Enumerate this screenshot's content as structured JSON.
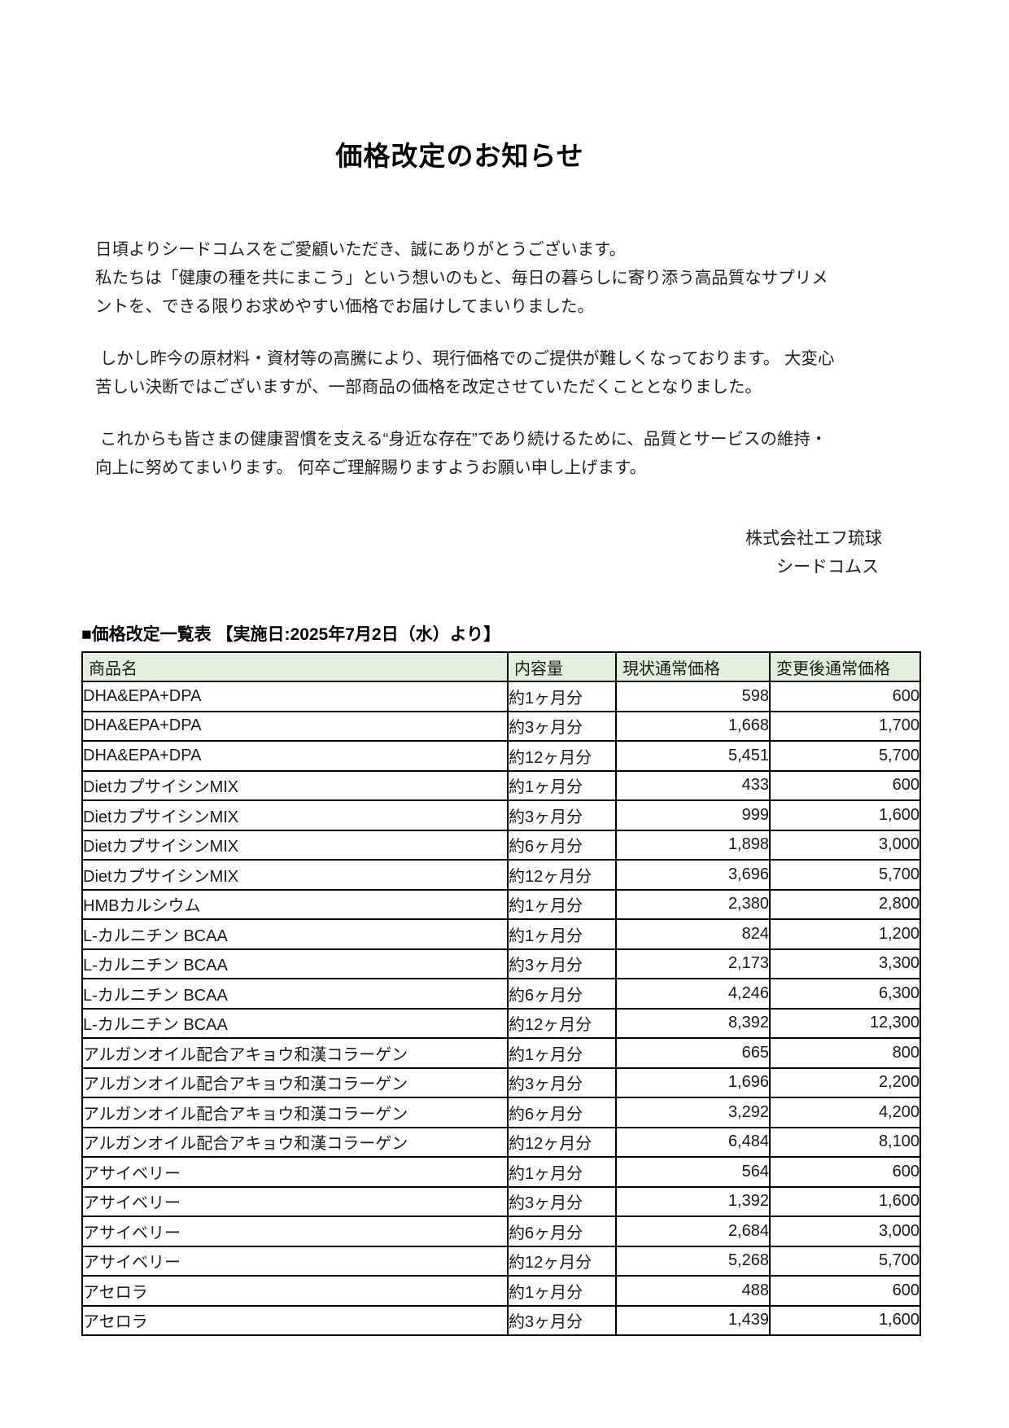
{
  "title": "価格改定のお知らせ",
  "body": {
    "paragraphs": [
      {
        "lines": [
          "日頃よりシードコムスをご愛顧いただき、誠にありがとうございます。",
          "私たちは「健康の種を共にまこう」という想いのもと、毎日の暮らしに寄り添う高品質なサプリメ",
          "ントを、できる限りお求めやすい価格でお届けしてまいりました。"
        ]
      },
      {
        "lines": [
          " しかし昨今の原材料・資材等の高騰により、現行価格でのご提供が難しくなっております。 大変心",
          "苦しい決断ではございますが、一部商品の価格を改定させていただくこととなりました。"
        ]
      },
      {
        "lines": [
          " これからも皆さまの健康習慣を支える“身近な存在”であり続けるために、品質とサービスの維持・",
          "向上に努めてまいります。 何卒ご理解賜りますようお願い申し上げます。"
        ]
      }
    ]
  },
  "signature": {
    "company": "株式会社エフ琉球",
    "brand": "シードコムス"
  },
  "table_section": {
    "heading": "■価格改定一覧表 【実施日:2025年7月2日（水）より】",
    "effective_date": "2025年7月2日（水）",
    "header_bg": "#e2efda",
    "columns": [
      "商品名",
      "内容量",
      "現状通常価格",
      "変更後通常価格"
    ],
    "rows": [
      [
        "DHA&EPA+DPA",
        "約1ヶ月分",
        "598",
        "600"
      ],
      [
        "DHA&EPA+DPA",
        "約3ヶ月分",
        "1,668",
        "1,700"
      ],
      [
        "DHA&EPA+DPA",
        "約12ヶ月分",
        "5,451",
        "5,700"
      ],
      [
        "DietカプサイシンMIX",
        "約1ヶ月分",
        "433",
        "600"
      ],
      [
        "DietカプサイシンMIX",
        "約3ヶ月分",
        "999",
        "1,600"
      ],
      [
        "DietカプサイシンMIX",
        "約6ヶ月分",
        "1,898",
        "3,000"
      ],
      [
        "DietカプサイシンMIX",
        "約12ヶ月分",
        "3,696",
        "5,700"
      ],
      [
        "HMBカルシウム",
        "約1ヶ月分",
        "2,380",
        "2,800"
      ],
      [
        "L-カルニチン BCAA",
        "約1ヶ月分",
        "824",
        "1,200"
      ],
      [
        "L-カルニチン BCAA",
        "約3ヶ月分",
        "2,173",
        "3,300"
      ],
      [
        "L-カルニチン BCAA",
        "約6ヶ月分",
        "4,246",
        "6,300"
      ],
      [
        "L-カルニチン BCAA",
        "約12ヶ月分",
        "8,392",
        "12,300"
      ],
      [
        "アルガンオイル配合アキョウ和漢コラーゲン",
        "約1ヶ月分",
        "665",
        "800"
      ],
      [
        "アルガンオイル配合アキョウ和漢コラーゲン",
        "約3ヶ月分",
        "1,696",
        "2,200"
      ],
      [
        "アルガンオイル配合アキョウ和漢コラーゲン",
        "約6ヶ月分",
        "3,292",
        "4,200"
      ],
      [
        "アルガンオイル配合アキョウ和漢コラーゲン",
        "約12ヶ月分",
        "6,484",
        "8,100"
      ],
      [
        "アサイベリー",
        "約1ヶ月分",
        "564",
        "600"
      ],
      [
        "アサイベリー",
        "約3ヶ月分",
        "1,392",
        "1,600"
      ],
      [
        "アサイベリー",
        "約6ヶ月分",
        "2,684",
        "3,000"
      ],
      [
        "アサイベリー",
        "約12ヶ月分",
        "5,268",
        "5,700"
      ],
      [
        "アセロラ",
        "約1ヶ月分",
        "488",
        "600"
      ],
      [
        "アセロラ",
        "約3ヶ月分",
        "1,439",
        "1,600"
      ]
    ]
  }
}
